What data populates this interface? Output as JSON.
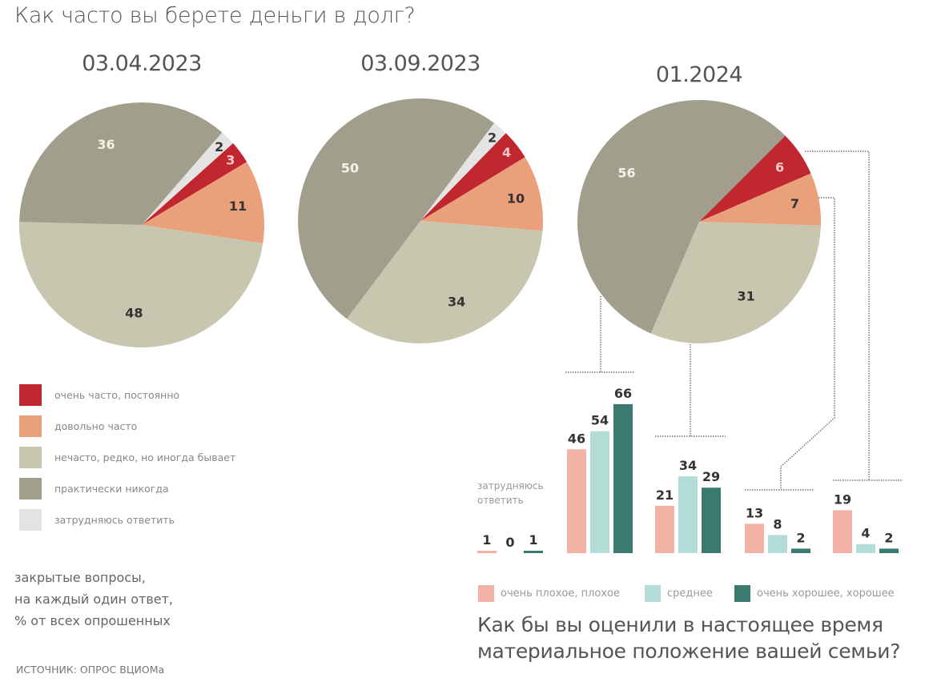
{
  "chart_data": [
    {
      "type": "pie",
      "title": "03.04.2023",
      "categories": [
        "затрудняюсь ответить",
        "очень часто, постоянно",
        "довольно часто",
        "нечасто, редко, но иногда бывает",
        "практически никогда"
      ],
      "values": [
        2,
        3,
        11,
        48,
        36
      ]
    },
    {
      "type": "pie",
      "title": "03.09.2023",
      "categories": [
        "затрудняюсь ответить",
        "очень часто, постоянно",
        "довольно часто",
        "нечасто, редко, но иногда бывает",
        "практически никогда"
      ],
      "values": [
        2,
        4,
        10,
        34,
        50
      ]
    },
    {
      "type": "pie",
      "title": "01.2024",
      "categories": [
        "очень часто, постоянно",
        "довольно часто",
        "нечасто, редко, но иногда бывает",
        "практически никогда"
      ],
      "values": [
        6,
        7,
        31,
        56
      ]
    },
    {
      "type": "bar",
      "title": "Как бы вы оценили в настоящее время материальное положение вашей семьи?",
      "categories": [
        "затрудняюсь ответить",
        "практически никогда",
        "нечасто, редко, но иногда бывает",
        "довольно часто",
        "очень часто, постоянно"
      ],
      "series": [
        {
          "name": "очень плохое, плохое",
          "values": [
            1,
            46,
            21,
            13,
            19
          ]
        },
        {
          "name": "среднее",
          "values": [
            0,
            54,
            34,
            8,
            4
          ]
        },
        {
          "name": "очень хорошее, хорошее",
          "values": [
            1,
            66,
            29,
            2,
            2
          ]
        }
      ],
      "legend": "bottom"
    }
  ],
  "title": "Как часто вы берете деньги в долг?",
  "dates": [
    "03.04.2023",
    "03.09.2023",
    "01.2024"
  ],
  "pie_colors": {
    "затрудняюсь ответить": "#e4e4e4",
    "очень часто, постоянно": "#c1272f",
    "довольно часто": "#e9a07b",
    "нечасто, редко, но иногда бывает": "#c8c6ae",
    "практически никогда": "#a19f8b"
  },
  "legend": [
    {
      "label": "очень часто, постоянно",
      "color": "#c1272f"
    },
    {
      "label": "довольно часто",
      "color": "#e9a07b"
    },
    {
      "label": "нечасто, редко, но иногда бывает",
      "color": "#c8c6ae"
    },
    {
      "label": "практически никогда",
      "color": "#a19f8b"
    },
    {
      "label": "затрудняюсь ответить",
      "color": "#e4e4e4"
    }
  ],
  "note": [
    "закрытые вопросы,",
    "на каждый один ответ,",
    "% от всех опрошенных"
  ],
  "source": "ИСТОЧНИК: ОПРОС ВЦИОМа",
  "bar_group_label": [
    "затрудняюсь",
    "ответить"
  ],
  "bar_legend": [
    {
      "label": "очень плохое, плохое",
      "color": "#f2b3a6"
    },
    {
      "label": "среднее",
      "color": "#b3ddd6"
    },
    {
      "label": "очень хорошее, хорошее",
      "color": "#3b7b6f"
    }
  ],
  "question2": [
    "Как бы вы оценили в настоящее время",
    "материальное положение вашей семьи?"
  ]
}
